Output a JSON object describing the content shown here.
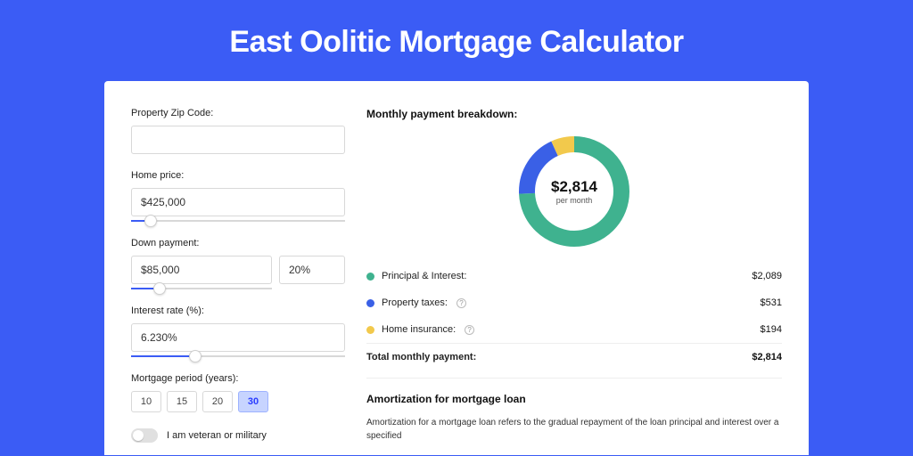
{
  "page": {
    "title": "East Oolitic Mortgage Calculator",
    "bg_color": "#3b5cf5",
    "card_bg": "#ffffff"
  },
  "form": {
    "zip": {
      "label": "Property Zip Code:",
      "value": ""
    },
    "home_price": {
      "label": "Home price:",
      "value": "$425,000",
      "slider_pct": 9
    },
    "down_payment": {
      "label": "Down payment:",
      "value": "$85,000",
      "pct_value": "20%",
      "slider_pct": 20
    },
    "interest_rate": {
      "label": "Interest rate (%):",
      "value": "6.230%",
      "slider_pct": 30
    },
    "mortgage_period": {
      "label": "Mortgage period (years):",
      "options": [
        "10",
        "15",
        "20",
        "30"
      ],
      "selected": "30"
    },
    "veteran": {
      "label": "I am veteran or military",
      "checked": false
    }
  },
  "breakdown": {
    "title": "Monthly payment breakdown:",
    "donut": {
      "amount": "$2,814",
      "sub": "per month",
      "segments": [
        {
          "key": "principal_interest",
          "value": 2089,
          "color": "#3fb28f"
        },
        {
          "key": "property_taxes",
          "value": 531,
          "color": "#3a60e6"
        },
        {
          "key": "home_insurance",
          "value": 194,
          "color": "#f2c94c"
        }
      ],
      "ring_thickness": 18,
      "size": 124
    },
    "items": [
      {
        "label": "Principal & Interest:",
        "value": "$2,089",
        "color": "#3fb28f",
        "info": false
      },
      {
        "label": "Property taxes:",
        "value": "$531",
        "color": "#3a60e6",
        "info": true
      },
      {
        "label": "Home insurance:",
        "value": "$194",
        "color": "#f2c94c",
        "info": true
      }
    ],
    "total": {
      "label": "Total monthly payment:",
      "value": "$2,814"
    }
  },
  "amortization": {
    "title": "Amortization for mortgage loan",
    "text": "Amortization for a mortgage loan refers to the gradual repayment of the loan principal and interest over a specified"
  }
}
